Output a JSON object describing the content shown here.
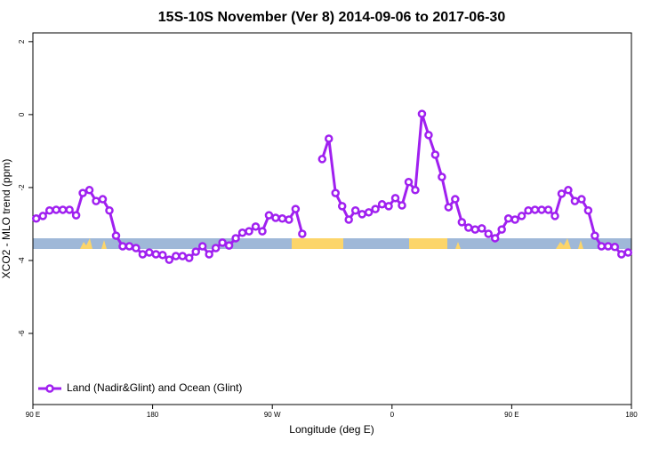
{
  "chart_data": {
    "type": "line",
    "title": "15S-10S November (Ver 8)   2014-09-06 to 2017-06-30",
    "x_label": "Longitude (deg E)",
    "y_label": "XCO2 - MLO trend (ppm)",
    "x": [
      92.5,
      97.5,
      102.5,
      107.5,
      112.5,
      117.5,
      122.5,
      127.5,
      132.5,
      137.5,
      142.5,
      147.5,
      152.5,
      157.5,
      162.5,
      167.5,
      172.5,
      177.5,
      182.5,
      187.5,
      192.5,
      197.5,
      202.5,
      207.5,
      212.5,
      217.5,
      222.5,
      227.5,
      232.5,
      237.5,
      242.5,
      247.5,
      252.5,
      257.5,
      262.5,
      267.5,
      272.5,
      277.5,
      282.5,
      287.5,
      292.5,
      297.5,
      302.5,
      307.5,
      312.5,
      317.5,
      322.5,
      327.5,
      332.5,
      337.5,
      342.5,
      347.5,
      352.5,
      357.5,
      362.5,
      367.5,
      372.5,
      377.5,
      382.5,
      387.5,
      392.5,
      397.5,
      402.5,
      407.5,
      412.5,
      417.5,
      422.5,
      427.5,
      432.5,
      437.5,
      442.5,
      447.5,
      452.5,
      457.5,
      462.5,
      467.5,
      472.5,
      477.5,
      482.5,
      487.5,
      492.5,
      497.5,
      502.5,
      507.5,
      512.5,
      517.5,
      522.5,
      527.5,
      532.5,
      537.5
    ],
    "series": [
      {
        "name": "Land (Nadir&Glint) and Ocean (Glint)",
        "color": "#a020f0",
        "values": [
          -2.85,
          -2.78,
          -2.63,
          -2.61,
          -2.61,
          -2.61,
          -2.76,
          -2.15,
          -2.07,
          -2.37,
          -2.32,
          -2.63,
          -3.32,
          -3.61,
          -3.61,
          -3.66,
          -3.83,
          -3.78,
          -3.83,
          -3.85,
          -3.98,
          -3.88,
          -3.88,
          -3.93,
          -3.76,
          -3.61,
          -3.83,
          -3.66,
          -3.51,
          -3.59,
          -3.39,
          -3.24,
          -3.2,
          -3.07,
          -3.2,
          -2.76,
          -2.83,
          -2.85,
          -2.88,
          -2.59,
          -3.27,
          null,
          null,
          -1.22,
          -0.66,
          -2.15,
          -2.51,
          -2.88,
          -2.63,
          -2.73,
          -2.68,
          -2.59,
          -2.46,
          -2.51,
          -2.29,
          -2.49,
          -1.85,
          -2.07,
          0.02,
          -0.56,
          -1.1,
          -1.71,
          -2.54,
          -2.32,
          -2.95,
          -3.1,
          -3.15,
          -3.12,
          -3.27,
          -3.39,
          -3.15,
          -2.85,
          -2.88,
          -2.78,
          -2.63,
          -2.61,
          -2.61,
          -2.61,
          -2.78,
          -2.17,
          -2.07,
          -2.37,
          -2.32,
          -2.63,
          -3.32,
          -3.61,
          -3.61,
          -3.63,
          -3.83,
          -3.78
        ]
      }
    ],
    "xlim": [
      90,
      540
    ],
    "xticks": [
      {
        "value": 90,
        "label": "90 E"
      },
      180,
      {
        "value": 270,
        "label": "90 W"
      },
      {
        "value": 360,
        "label": "0"
      },
      {
        "value": 450,
        "label": "90 E"
      },
      {
        "value": 540,
        "label": "180"
      }
    ],
    "ylim": [
      -7.95,
      2.24
    ],
    "yticks": [
      2,
      0,
      -2,
      -4,
      -6
    ],
    "legend": "bottom-left"
  }
}
